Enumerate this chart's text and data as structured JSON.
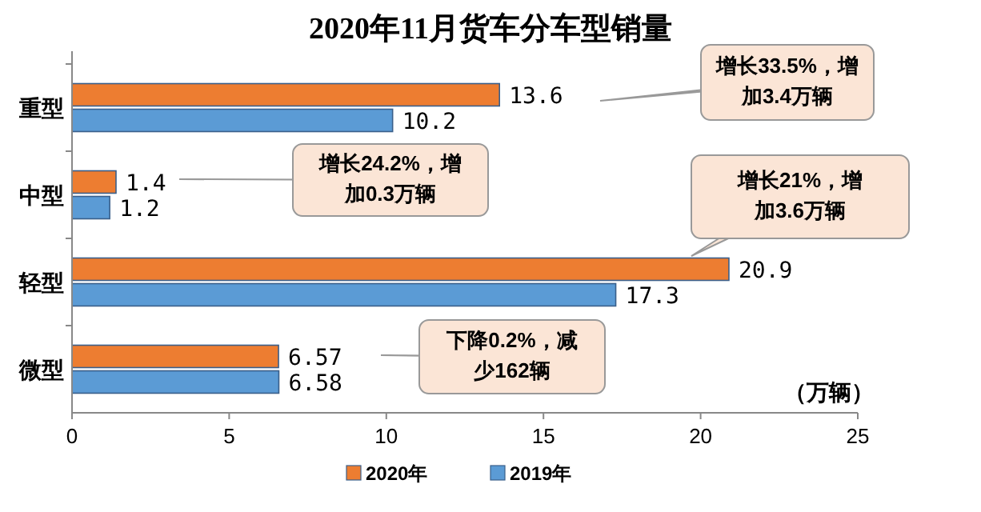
{
  "chart_data": {
    "type": "bar",
    "orientation": "horizontal",
    "title": "2020年11月货车分车型销量",
    "xlabel": "（万辆）",
    "categories": [
      "重型",
      "中型",
      "轻型",
      "微型"
    ],
    "series": [
      {
        "name": "2020年",
        "color": "#ed7d31",
        "values": [
          13.6,
          1.4,
          20.9,
          6.57
        ]
      },
      {
        "name": "2019年",
        "color": "#5b9bd5",
        "values": [
          10.2,
          1.2,
          17.3,
          6.58
        ]
      }
    ],
    "xlim": [
      0,
      25
    ],
    "xticks": [
      0,
      5,
      10,
      15,
      20,
      25
    ],
    "data_labels": true,
    "legend": "bottom",
    "grid": false,
    "annotations": [
      "增长33.5%，增加3.4万辆",
      "增长24.2%，增加0.3万辆",
      "增长21%，增加3.6万辆",
      "下降0.2%，减少162辆"
    ]
  }
}
